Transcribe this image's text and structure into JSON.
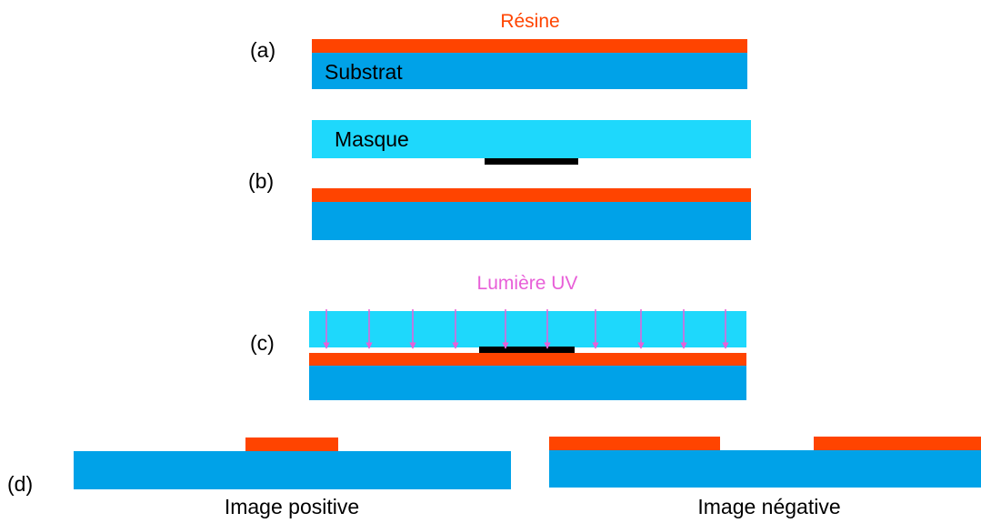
{
  "colors": {
    "resin": "#ff4400",
    "substrate": "#00a2e8",
    "mask": "#1ed8fc",
    "opaque": "#000000",
    "uv": "#e85fd8",
    "text": "#000000"
  },
  "labels": {
    "a": "(a)",
    "b": "(b)",
    "c": "(c)",
    "d": "(d)",
    "resin": "Résine",
    "substrate": "Substrat",
    "mask": "Masque",
    "uv_light": "Lumière UV",
    "positive_image": "Image positive",
    "negative_image": "Image négative"
  }
}
